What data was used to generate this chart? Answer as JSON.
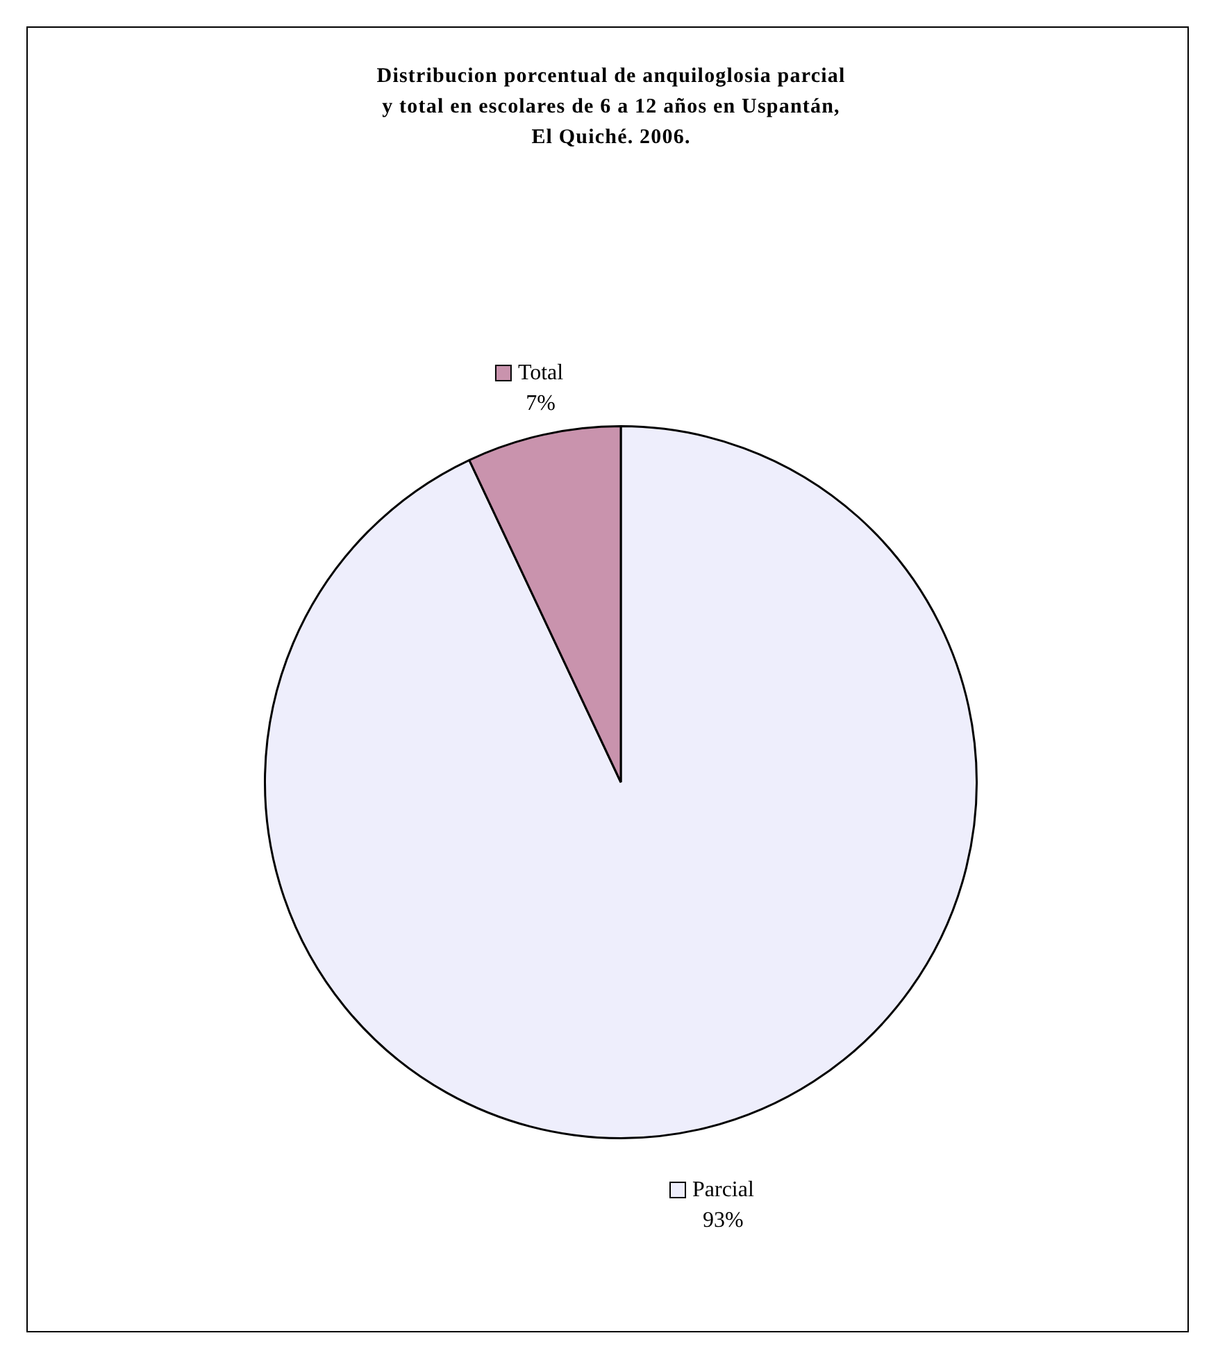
{
  "chart_data": {
    "type": "pie",
    "title": "Distribucion porcentual de anquiloglosia parcial y total en escolares de 6 a 12 años en Uspantán, El Quiché.  2006.",
    "categories": [
      "Parcial",
      "Total"
    ],
    "values": [
      93,
      7
    ],
    "colors": [
      "#eeeefc",
      "#c993ad"
    ],
    "value_labels": [
      "93%",
      "7%"
    ],
    "legend": "top"
  }
}
